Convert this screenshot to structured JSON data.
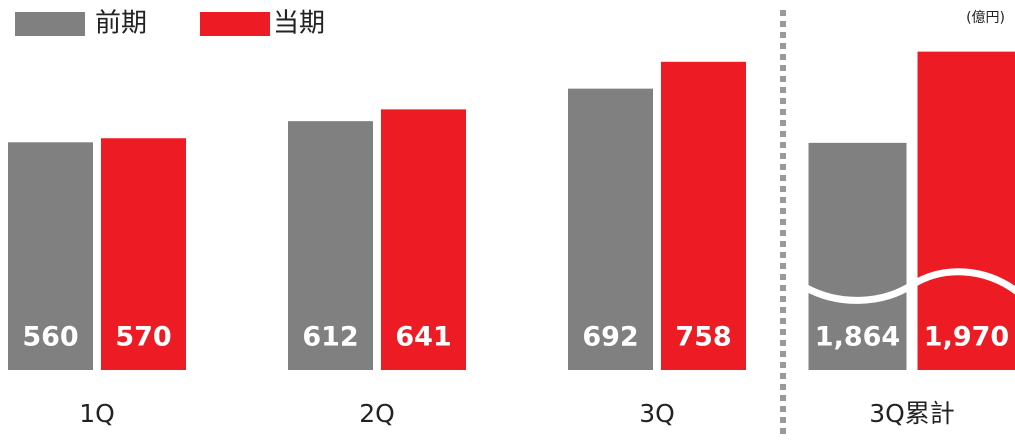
{
  "chart_data": [
    {
      "type": "bar",
      "categories": [
        "1Q",
        "2Q",
        "3Q"
      ],
      "series": [
        {
          "name": "前期",
          "color": "#808080",
          "values": [
            560,
            612,
            692
          ]
        },
        {
          "name": "当期",
          "color": "#ed1c24",
          "values": [
            570,
            641,
            758
          ]
        }
      ],
      "ylim": [
        0,
        910
      ],
      "legend": "top-left"
    },
    {
      "type": "bar",
      "categories": [
        "3Q累計"
      ],
      "unit": "(億円)",
      "axis_break": true,
      "series": [
        {
          "color": "#808080",
          "values": [
            1864
          ],
          "value_labels": [
            "1,864"
          ]
        },
        {
          "color": "#ed1c24",
          "values": [
            1970
          ],
          "value_labels": [
            "1,970"
          ]
        }
      ],
      "ylim": [
        1600,
        2030
      ]
    }
  ]
}
